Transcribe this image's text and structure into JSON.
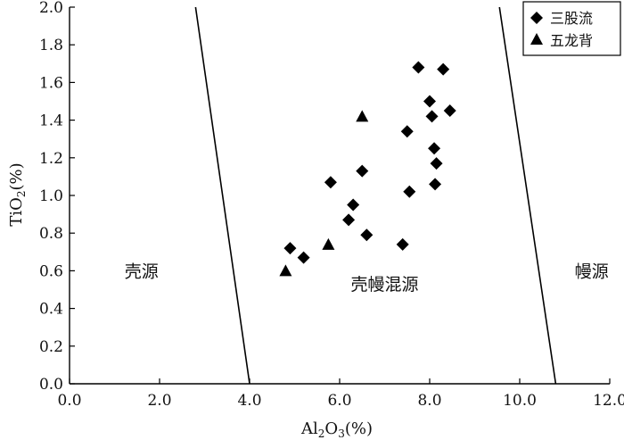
{
  "chart_data": {
    "type": "scatter",
    "xlabel": "Al2O3(%)",
    "ylabel": "TiO2(%)",
    "xlim": [
      0,
      12
    ],
    "ylim": [
      0,
      2
    ],
    "xticks": [
      "0.0",
      "2.0",
      "4.0",
      "6.0",
      "8.0",
      "10.0",
      "12.0"
    ],
    "yticks": [
      "0.0",
      "0.2",
      "0.4",
      "0.6",
      "0.8",
      "1.0",
      "1.2",
      "1.4",
      "1.6",
      "1.8",
      "2.0"
    ],
    "grid": false,
    "legend_position": "top-right",
    "series": [
      {
        "name": "三股流",
        "marker": "diamond",
        "color": "#000000",
        "points": [
          [
            4.9,
            0.72
          ],
          [
            5.2,
            0.67
          ],
          [
            5.8,
            1.07
          ],
          [
            6.2,
            0.87
          ],
          [
            6.3,
            0.95
          ],
          [
            6.5,
            1.13
          ],
          [
            6.6,
            0.79
          ],
          [
            7.4,
            0.74
          ],
          [
            7.5,
            1.34
          ],
          [
            7.55,
            1.02
          ],
          [
            7.75,
            1.68
          ],
          [
            8.0,
            1.5
          ],
          [
            8.05,
            1.42
          ],
          [
            8.1,
            1.25
          ],
          [
            8.12,
            1.06
          ],
          [
            8.15,
            1.17
          ],
          [
            8.3,
            1.67
          ],
          [
            8.45,
            1.45
          ]
        ]
      },
      {
        "name": "五龙背",
        "marker": "triangle",
        "color": "#000000",
        "points": [
          [
            4.8,
            0.6
          ],
          [
            5.75,
            0.74
          ],
          [
            6.5,
            1.42
          ]
        ]
      }
    ],
    "boundary_lines": [
      {
        "from": [
          2.8,
          2.0
        ],
        "to": [
          4.0,
          0.0
        ]
      },
      {
        "from": [
          9.55,
          2.0
        ],
        "to": [
          10.8,
          0.0
        ]
      }
    ],
    "region_labels": [
      {
        "text": "壳源",
        "x": 1.6,
        "y": 0.6
      },
      {
        "text": "壳幔混源",
        "x": 7.0,
        "y": 0.53
      },
      {
        "text": "幔源",
        "x": 11.6,
        "y": 0.6
      }
    ]
  }
}
